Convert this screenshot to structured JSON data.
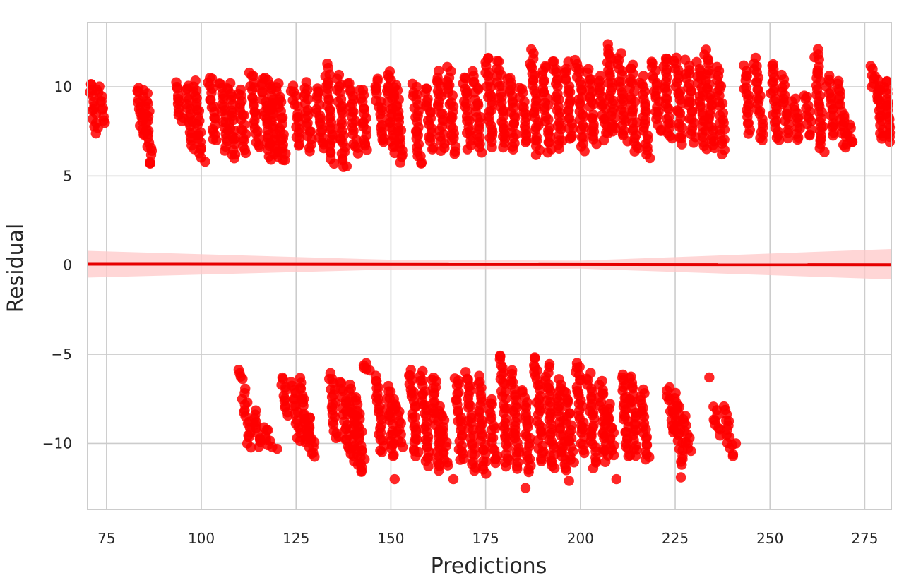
{
  "chart_data": {
    "type": "scatter",
    "title": "",
    "xlabel": "Predictions",
    "ylabel": "Residual",
    "xlim": [
      70,
      282
    ],
    "ylim": [
      -13.7,
      13.6
    ],
    "xticks": [
      75,
      100,
      125,
      150,
      175,
      200,
      225,
      250,
      275
    ],
    "yticks": [
      10,
      5,
      0,
      -5,
      -10
    ],
    "xtick_labels": [
      "75",
      "100",
      "125",
      "150",
      "175",
      "200",
      "225",
      "250",
      "275"
    ],
    "ytick_labels": [
      "10",
      "5",
      "0",
      "−5",
      "−10"
    ],
    "grid": true,
    "legend": "none",
    "colors": {
      "points": "#ff0000",
      "line": "#e60000",
      "band": "#ffc8c8",
      "grid": "#cccccc",
      "frame": "#cccccc"
    },
    "regression_line": {
      "x": [
        70,
        282
      ],
      "y": [
        0.05,
        0.02
      ]
    },
    "confidence_band": {
      "x": [
        70,
        150,
        200,
        282
      ],
      "upper": [
        0.8,
        0.3,
        0.25,
        0.9
      ],
      "lower": [
        -0.7,
        -0.25,
        -0.2,
        -0.8
      ]
    },
    "point_bands": [
      {
        "x": 71.5,
        "y0": 10.2,
        "y1": 7.4
      },
      {
        "x": 73.5,
        "y0": 10.1,
        "y1": 8.0
      },
      {
        "x": 84,
        "y0": 10.0,
        "y1": 7.2
      },
      {
        "x": 86,
        "y0": 9.8,
        "y1": 5.7
      },
      {
        "x": 94,
        "y0": 10.2,
        "y1": 8.0
      },
      {
        "x": 97,
        "y0": 10.1,
        "y1": 6.5
      },
      {
        "x": 99,
        "y0": 10.3,
        "y1": 6.0
      },
      {
        "x": 103,
        "y0": 10.6,
        "y1": 6.9
      },
      {
        "x": 106,
        "y0": 10.3,
        "y1": 6.5
      },
      {
        "x": 108,
        "y0": 10.2,
        "y1": 5.9
      },
      {
        "x": 111,
        "y0": 9.9,
        "y1": 6.3
      },
      {
        "x": 114,
        "y0": 10.9,
        "y1": 6.5
      },
      {
        "x": 117,
        "y0": 10.6,
        "y1": 6.0
      },
      {
        "x": 119,
        "y0": 10.4,
        "y1": 6.0
      },
      {
        "x": 121,
        "y0": 10.1,
        "y1": 5.8
      },
      {
        "x": 125,
        "y0": 10.0,
        "y1": 6.6
      },
      {
        "x": 128,
        "y0": 10.2,
        "y1": 6.4
      },
      {
        "x": 131,
        "y0": 10.0,
        "y1": 6.5
      },
      {
        "x": 134,
        "y0": 11.2,
        "y1": 5.8
      },
      {
        "x": 137,
        "y0": 10.6,
        "y1": 5.6
      },
      {
        "x": 140,
        "y0": 10.3,
        "y1": 6.3
      },
      {
        "x": 143,
        "y0": 9.9,
        "y1": 6.5
      },
      {
        "x": 147,
        "y0": 10.5,
        "y1": 6.8
      },
      {
        "x": 150,
        "y0": 10.9,
        "y1": 6.3
      },
      {
        "x": 152,
        "y0": 10.2,
        "y1": 5.8
      },
      {
        "x": 157,
        "y0": 10.2,
        "y1": 5.8
      },
      {
        "x": 160,
        "y0": 10.0,
        "y1": 6.5
      },
      {
        "x": 163,
        "y0": 10.8,
        "y1": 6.4
      },
      {
        "x": 166,
        "y0": 11.0,
        "y1": 6.3
      },
      {
        "x": 170,
        "y0": 10.6,
        "y1": 6.6
      },
      {
        "x": 173,
        "y0": 10.8,
        "y1": 6.4
      },
      {
        "x": 176,
        "y0": 11.7,
        "y1": 6.7
      },
      {
        "x": 179,
        "y0": 11.5,
        "y1": 6.6
      },
      {
        "x": 182,
        "y0": 10.6,
        "y1": 6.5
      },
      {
        "x": 185,
        "y0": 10.0,
        "y1": 6.8
      },
      {
        "x": 188,
        "y0": 12.0,
        "y1": 6.3
      },
      {
        "x": 191,
        "y0": 11.2,
        "y1": 6.4
      },
      {
        "x": 194,
        "y0": 11.5,
        "y1": 6.5
      },
      {
        "x": 197,
        "y0": 11.3,
        "y1": 7.0
      },
      {
        "x": 200,
        "y0": 11.5,
        "y1": 6.5
      },
      {
        "x": 203,
        "y0": 10.9,
        "y1": 6.8
      },
      {
        "x": 206,
        "y0": 10.6,
        "y1": 7.1
      },
      {
        "x": 208,
        "y0": 12.3,
        "y1": 7.4
      },
      {
        "x": 211,
        "y0": 11.8,
        "y1": 7.0
      },
      {
        "x": 214,
        "y0": 11.3,
        "y1": 6.3
      },
      {
        "x": 217,
        "y0": 10.5,
        "y1": 6.1
      },
      {
        "x": 220,
        "y0": 11.5,
        "y1": 7.5
      },
      {
        "x": 223,
        "y0": 11.7,
        "y1": 7.0
      },
      {
        "x": 226,
        "y0": 11.6,
        "y1": 6.8
      },
      {
        "x": 229,
        "y0": 11.4,
        "y1": 6.9
      },
      {
        "x": 232,
        "y0": 11.3,
        "y1": 6.6
      },
      {
        "x": 234,
        "y0": 12.0,
        "y1": 6.5
      },
      {
        "x": 237,
        "y0": 11.0,
        "y1": 6.3
      },
      {
        "x": 244,
        "y0": 11.1,
        "y1": 7.4
      },
      {
        "x": 247,
        "y0": 11.5,
        "y1": 7.0
      },
      {
        "x": 251,
        "y0": 11.3,
        "y1": 7.0
      },
      {
        "x": 254,
        "y0": 10.6,
        "y1": 7.2
      },
      {
        "x": 257,
        "y0": 9.3,
        "y1": 7.0
      },
      {
        "x": 260,
        "y0": 9.6,
        "y1": 7.2
      },
      {
        "x": 263,
        "y0": 12.0,
        "y1": 6.3
      },
      {
        "x": 266,
        "y0": 10.6,
        "y1": 7.3
      },
      {
        "x": 269,
        "y0": 10.3,
        "y1": 6.5
      },
      {
        "x": 271,
        "y0": 8.0,
        "y1": 6.8
      },
      {
        "x": 277,
        "y0": 11.1,
        "y1": 9.8
      },
      {
        "x": 279,
        "y0": 10.5,
        "y1": 7.0
      },
      {
        "x": 281,
        "y0": 10.4,
        "y1": 6.9
      },
      {
        "x": 110.5,
        "y0": -5.9,
        "y1": -6.4
      },
      {
        "x": 112,
        "y0": -7.0,
        "y1": -10.1
      },
      {
        "x": 115,
        "y0": -8.2,
        "y1": -10.2
      },
      {
        "x": 117.5,
        "y0": -9.0,
        "y1": -10.3
      },
      {
        "x": 122,
        "y0": -6.3,
        "y1": -8.5
      },
      {
        "x": 125,
        "y0": -6.6,
        "y1": -9.8
      },
      {
        "x": 127,
        "y0": -6.4,
        "y1": -10.2
      },
      {
        "x": 129,
        "y0": -8.5,
        "y1": -10.8
      },
      {
        "x": 135,
        "y0": -6.1,
        "y1": -9.8
      },
      {
        "x": 138,
        "y0": -6.5,
        "y1": -10.5
      },
      {
        "x": 140,
        "y0": -6.8,
        "y1": -11.2
      },
      {
        "x": 142,
        "y0": -7.5,
        "y1": -11.7
      },
      {
        "x": 143.5,
        "y0": -5.5,
        "y1": -6.0
      },
      {
        "x": 147,
        "y0": -6.2,
        "y1": -10.5
      },
      {
        "x": 150,
        "y0": -6.8,
        "y1": -10.8
      },
      {
        "x": 152,
        "y0": -7.5,
        "y1": -10.2
      },
      {
        "x": 156,
        "y0": -5.9,
        "y1": -10.8
      },
      {
        "x": 159,
        "y0": -6.0,
        "y1": -11.3
      },
      {
        "x": 162,
        "y0": -6.2,
        "y1": -11.5
      },
      {
        "x": 164,
        "y0": -8.0,
        "y1": -11.2
      },
      {
        "x": 168,
        "y0": -6.3,
        "y1": -11.0
      },
      {
        "x": 171,
        "y0": -6.1,
        "y1": -11.5
      },
      {
        "x": 174,
        "y0": -6.3,
        "y1": -11.7
      },
      {
        "x": 177,
        "y0": -7.5,
        "y1": -11.2
      },
      {
        "x": 180,
        "y0": -5.0,
        "y1": -11.3
      },
      {
        "x": 183,
        "y0": -6.2,
        "y1": -11.4
      },
      {
        "x": 186,
        "y0": -7.0,
        "y1": -11.6
      },
      {
        "x": 189,
        "y0": -5.1,
        "y1": -11.0
      },
      {
        "x": 192,
        "y0": -5.6,
        "y1": -11.5
      },
      {
        "x": 195,
        "y0": -6.5,
        "y1": -11.6
      },
      {
        "x": 197,
        "y0": -7.0,
        "y1": -11.0
      },
      {
        "x": 200,
        "y0": -5.4,
        "y1": -10.5
      },
      {
        "x": 203,
        "y0": -6.1,
        "y1": -11.3
      },
      {
        "x": 206,
        "y0": -6.5,
        "y1": -11.0
      },
      {
        "x": 208,
        "y0": -7.8,
        "y1": -10.6
      },
      {
        "x": 212,
        "y0": -6.1,
        "y1": -10.8
      },
      {
        "x": 214,
        "y0": -6.2,
        "y1": -10.6
      },
      {
        "x": 217,
        "y0": -7.0,
        "y1": -11.0
      },
      {
        "x": 224,
        "y0": -6.9,
        "y1": -9.5
      },
      {
        "x": 226,
        "y0": -7.2,
        "y1": -11.2
      },
      {
        "x": 228,
        "y0": -8.5,
        "y1": -10.5
      },
      {
        "x": 236,
        "y0": -8.0,
        "y1": -9.5
      },
      {
        "x": 239,
        "y0": -8.0,
        "y1": -10.7
      }
    ],
    "isolated_points": [
      {
        "x": 86.5,
        "y": 5.7
      },
      {
        "x": 101,
        "y": 5.8
      },
      {
        "x": 137.5,
        "y": 5.5
      },
      {
        "x": 158,
        "y": 5.7
      },
      {
        "x": 185.5,
        "y": -12.5
      },
      {
        "x": 209.5,
        "y": -12.0
      },
      {
        "x": 166.5,
        "y": -12.0
      },
      {
        "x": 197,
        "y": -12.1
      },
      {
        "x": 151,
        "y": -12.0
      },
      {
        "x": 226.5,
        "y": -11.9
      },
      {
        "x": 234,
        "y": -6.3
      },
      {
        "x": 241,
        "y": -10.0
      },
      {
        "x": 182,
        "y": -5.9
      },
      {
        "x": 120,
        "y": -10.3
      },
      {
        "x": 143.5,
        "y": -5.5
      }
    ]
  }
}
